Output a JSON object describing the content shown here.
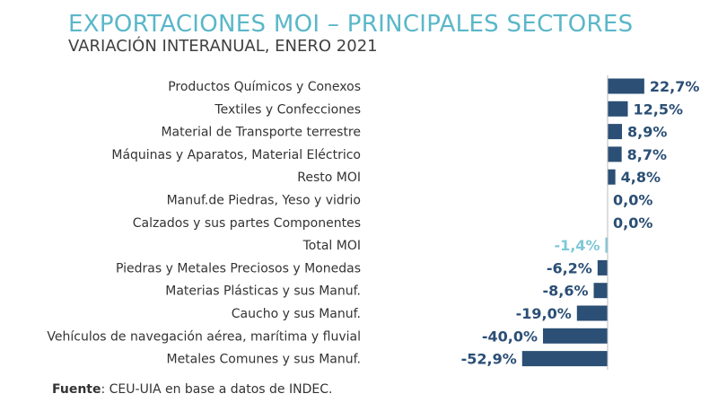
{
  "chart_data": {
    "type": "bar",
    "orientation": "horizontal",
    "title": "EXPORTACIONES MOI – PRINCIPALES SECTORES",
    "subtitle": "VARIACIÓN INTERANUAL, ENERO 2021",
    "categories": [
      "Productos Químicos y Conexos",
      "Textiles y Confecciones",
      "Material de Transporte terrestre",
      "Máquinas y Aparatos, Material Eléctrico",
      "Resto MOI",
      "Manuf.de Piedras, Yeso y vidrio",
      "Calzados y sus partes Componentes",
      "Total MOI",
      "Piedras y Metales Preciosos y Monedas",
      "Materias Plásticas y sus Manuf.",
      "Caucho y sus Manuf.",
      "Vehículos de navegación aérea, marítima y fluvial",
      "Metales Comunes y sus Manuf."
    ],
    "values": [
      22.7,
      12.5,
      8.9,
      8.7,
      4.8,
      0.0,
      0.0,
      -1.4,
      -6.2,
      -8.6,
      -19.0,
      -40.0,
      -52.9
    ],
    "value_labels": [
      "22,7%",
      "12,5%",
      "8,9%",
      "8,7%",
      "4,8%",
      "0,0%",
      "0,0%",
      "-1,4%",
      "-6,2%",
      "-8,6%",
      "-19,0%",
      "-40,0%",
      "-52,9%"
    ],
    "highlight": "Total MOI",
    "unit": "%",
    "colors": {
      "bar": "#2b4f75",
      "highlight": "#7ec8d8",
      "title": "#5ab7c9"
    }
  },
  "source": {
    "label": "Fuente",
    "text": ": CEU-UIA en base a datos de INDEC."
  }
}
